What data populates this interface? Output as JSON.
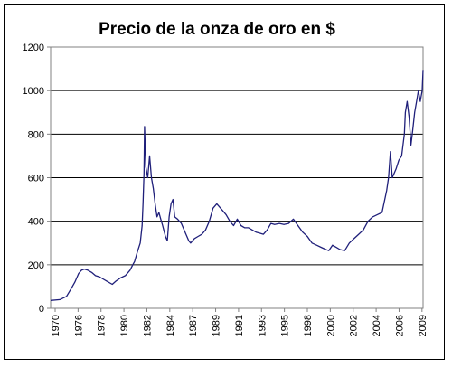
{
  "chart_data": {
    "type": "line",
    "title": "Precio de la onza de oro en $",
    "xlabel": "",
    "ylabel": "",
    "ylim": [
      0,
      1200
    ],
    "yticks": [
      0,
      200,
      400,
      600,
      800,
      1000,
      1200
    ],
    "xlim": [
      1970,
      2009.9
    ],
    "xtick_labels": [
      "1970",
      "1976",
      "1978",
      "1980",
      "1982",
      "1984",
      "1987",
      "1989",
      "1991",
      "1993",
      "1995",
      "1998",
      "2000",
      "2002",
      "2004",
      "2006",
      "2009"
    ],
    "grid": "horizontal",
    "legend": "none",
    "series": [
      {
        "color": "#1f1f7a",
        "x": [
          1970.0,
          1971.0,
          1971.7,
          1972.2,
          1972.6,
          1973.0,
          1973.3,
          1973.6,
          1974.0,
          1974.4,
          1974.8,
          1975.2,
          1975.6,
          1976.0,
          1976.6,
          1977.0,
          1977.5,
          1978.0,
          1978.5,
          1978.8,
          1979.0,
          1979.3,
          1979.6,
          1979.8,
          1979.9,
          1980.0,
          1980.06,
          1980.2,
          1980.4,
          1980.6,
          1980.8,
          1981.0,
          1981.2,
          1981.4,
          1981.6,
          1981.8,
          1982.0,
          1982.3,
          1982.5,
          1982.7,
          1982.9,
          1983.1,
          1983.3,
          1983.6,
          1984.0,
          1984.4,
          1984.8,
          1985.0,
          1985.4,
          1985.8,
          1986.2,
          1986.6,
          1987.0,
          1987.4,
          1987.8,
          1988.0,
          1988.4,
          1988.8,
          1989.2,
          1989.6,
          1990.0,
          1990.4,
          1990.8,
          1991.2,
          1991.6,
          1992.0,
          1992.4,
          1992.8,
          1993.2,
          1993.6,
          1994.0,
          1994.5,
          1995.0,
          1995.5,
          1996.0,
          1996.5,
          1997.0,
          1997.5,
          1998.0,
          1998.5,
          1999.0,
          1999.5,
          1999.8,
          2000.2,
          2000.6,
          2001.0,
          2001.5,
          2002.0,
          2002.5,
          2003.0,
          2003.5,
          2004.0,
          2004.5,
          2005.0,
          2005.5,
          2006.0,
          2006.2,
          2006.4,
          2006.6,
          2006.8,
          2007.0,
          2007.3,
          2007.6,
          2007.9,
          2008.0,
          2008.2,
          2008.4,
          2008.6,
          2008.8,
          2009.0,
          2009.2,
          2009.4,
          2009.6,
          2009.8,
          2009.9
        ],
        "values": [
          36,
          40,
          55,
          90,
          120,
          160,
          175,
          180,
          175,
          165,
          150,
          145,
          135,
          125,
          110,
          125,
          140,
          150,
          175,
          200,
          215,
          260,
          300,
          380,
          480,
          620,
          835,
          650,
          600,
          700,
          600,
          550,
          480,
          420,
          440,
          410,
          380,
          330,
          310,
          420,
          480,
          500,
          420,
          410,
          390,
          350,
          310,
          300,
          320,
          330,
          340,
          360,
          400,
          460,
          480,
          470,
          450,
          430,
          400,
          380,
          410,
          380,
          370,
          370,
          360,
          350,
          345,
          340,
          360,
          390,
          385,
          390,
          385,
          390,
          410,
          380,
          350,
          330,
          300,
          290,
          280,
          270,
          265,
          290,
          280,
          270,
          265,
          300,
          320,
          340,
          360,
          400,
          420,
          430,
          440,
          540,
          600,
          720,
          600,
          620,
          640,
          680,
          700,
          800,
          900,
          950,
          880,
          750,
          820,
          900,
          950,
          1000,
          950,
          1000,
          1095
        ]
      }
    ]
  }
}
